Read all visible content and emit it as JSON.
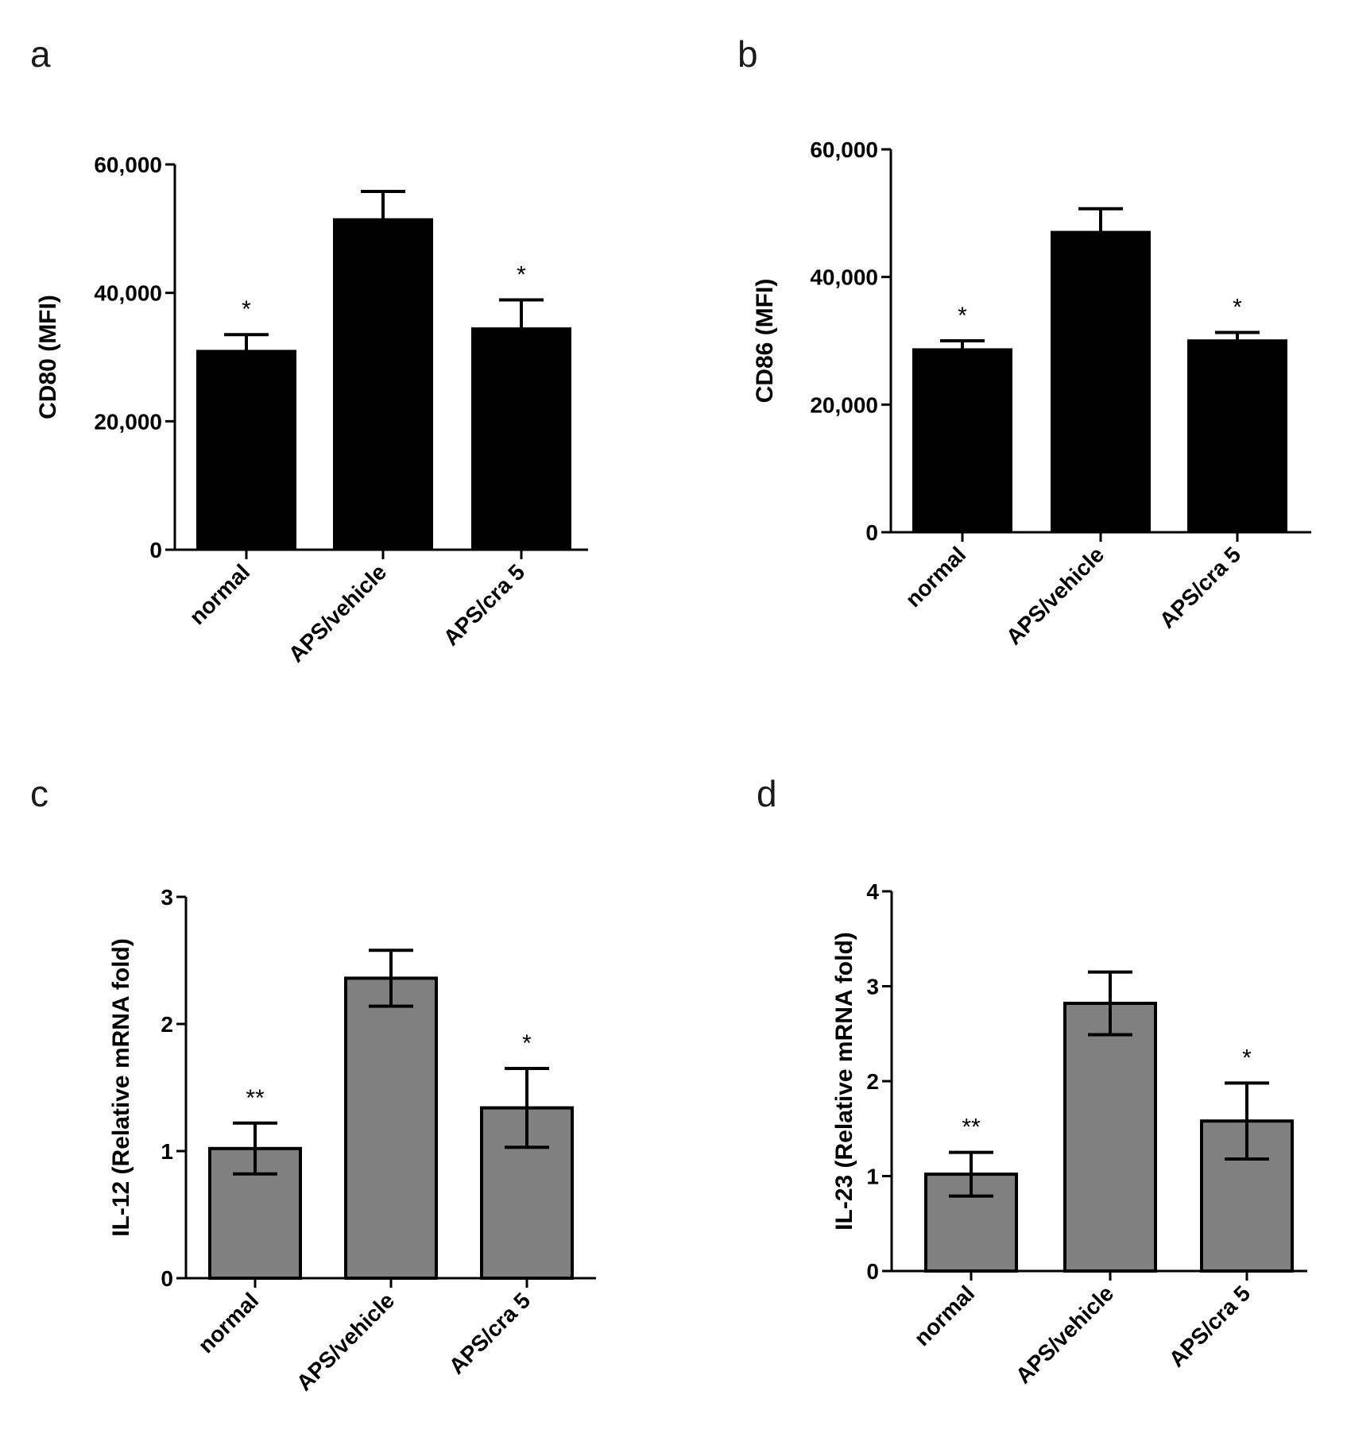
{
  "chart_data": [
    {
      "panel": "a",
      "type": "bar",
      "categories": [
        "normal",
        "APS/vehicle",
        "APS/cra 5"
      ],
      "values": [
        31000,
        51500,
        34500
      ],
      "errors": [
        2500,
        4300,
        4400
      ],
      "error_mode": "upper",
      "significance": [
        "*",
        "",
        "*"
      ],
      "ylabel": "CD80 (MFI)",
      "ylim": [
        0,
        60000
      ],
      "yticks": [
        0,
        20000,
        40000,
        60000
      ],
      "ytick_labels": [
        "0",
        "20,000",
        "40,000",
        "60,000"
      ],
      "bar_color": "#000000"
    },
    {
      "panel": "b",
      "type": "bar",
      "categories": [
        "normal",
        "APS/vehicle",
        "APS/cra 5"
      ],
      "values": [
        28700,
        47100,
        30100
      ],
      "errors": [
        1300,
        3600,
        1200
      ],
      "error_mode": "upper",
      "significance": [
        "*",
        "",
        "*"
      ],
      "ylabel": "CD86 (MFI)",
      "ylim": [
        0,
        60000
      ],
      "yticks": [
        0,
        20000,
        40000,
        60000
      ],
      "ytick_labels": [
        "0",
        "20,000",
        "40,000",
        "60,000"
      ],
      "bar_color": "#000000"
    },
    {
      "panel": "c",
      "type": "bar",
      "categories": [
        "normal",
        "APS/vehicle",
        "APS/cra 5"
      ],
      "values": [
        1.02,
        2.36,
        1.34
      ],
      "errors": [
        0.2,
        0.22,
        0.31
      ],
      "error_mode": "both",
      "significance": [
        "**",
        "",
        "*"
      ],
      "ylabel": "IL-12 (Relative mRNA fold)",
      "ylim": [
        0,
        3
      ],
      "yticks": [
        0,
        1,
        2,
        3
      ],
      "ytick_labels": [
        "0",
        "1",
        "2",
        "3"
      ],
      "bar_color": "#808080"
    },
    {
      "panel": "d",
      "type": "bar",
      "categories": [
        "normal",
        "APS/vehicle",
        "APS/cra 5"
      ],
      "values": [
        1.02,
        2.82,
        1.58
      ],
      "errors": [
        0.23,
        0.33,
        0.4
      ],
      "error_mode": "both",
      "significance": [
        "**",
        "",
        "*"
      ],
      "ylabel": "IL-23 (Relative mRNA fold)",
      "ylim": [
        0,
        4
      ],
      "yticks": [
        0,
        1,
        2,
        3,
        4
      ],
      "ytick_labels": [
        "0",
        "1",
        "2",
        "3",
        "4"
      ],
      "bar_color": "#808080"
    }
  ]
}
